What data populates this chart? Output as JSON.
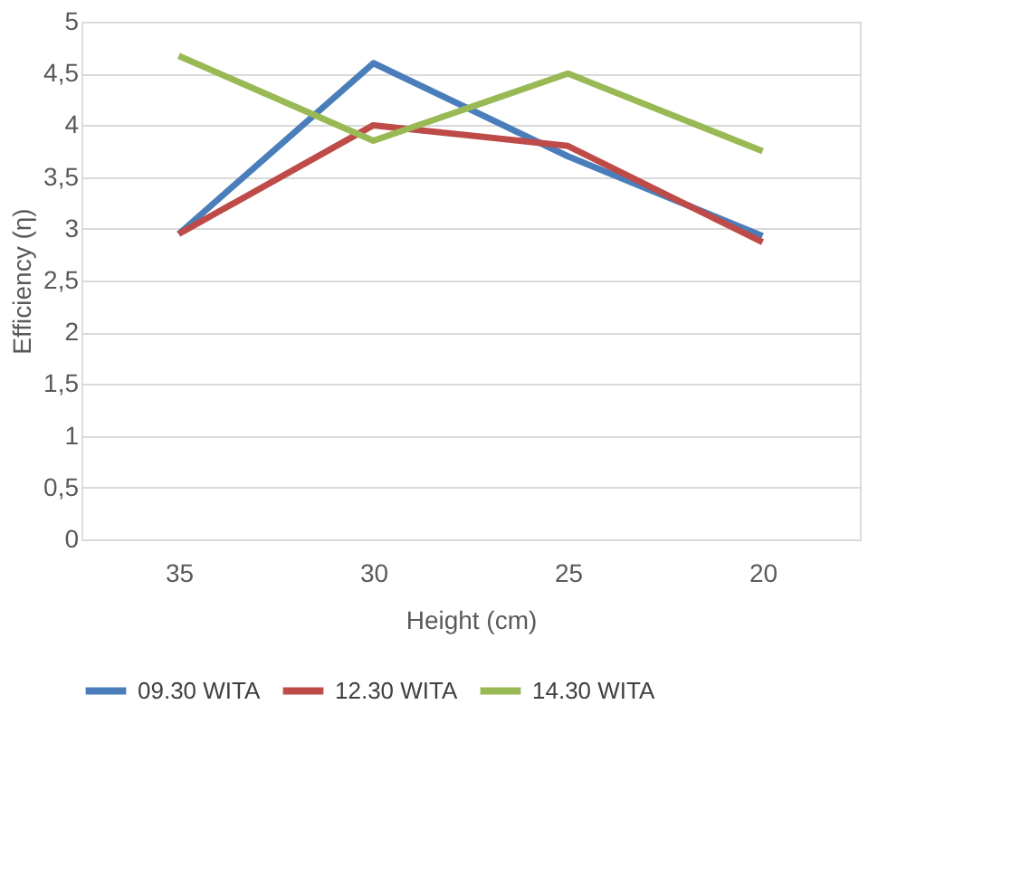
{
  "chart_data": {
    "type": "line",
    "xlabel": "Height (cm)",
    "ylabel": "Efficiency (η)",
    "categories": [
      "35",
      "30",
      "25",
      "20"
    ],
    "series": [
      {
        "name": "09.30 WITA",
        "color": "#4a7ebb",
        "values": [
          2.95,
          4.6,
          3.7,
          2.93
        ]
      },
      {
        "name": "12.30 WITA",
        "color": "#be4b48",
        "values": [
          2.95,
          4.0,
          3.8,
          2.87
        ]
      },
      {
        "name": "14.30 WITA",
        "color": "#98b954",
        "values": [
          4.67,
          3.85,
          4.5,
          3.75
        ]
      }
    ],
    "ylim": [
      0,
      5
    ],
    "yticks": [
      0,
      {
        "value": 0.5,
        "label": "0,5"
      },
      1,
      {
        "value": 1.5,
        "label": "1,5"
      },
      2,
      {
        "value": 2.5,
        "label": "2,5"
      },
      3,
      {
        "value": 3.5,
        "label": "3,5"
      },
      4,
      {
        "value": 4.5,
        "label": "4,5"
      },
      5
    ],
    "grid": "y",
    "legend": "bottom",
    "marker": "none",
    "line_style": "solid"
  }
}
